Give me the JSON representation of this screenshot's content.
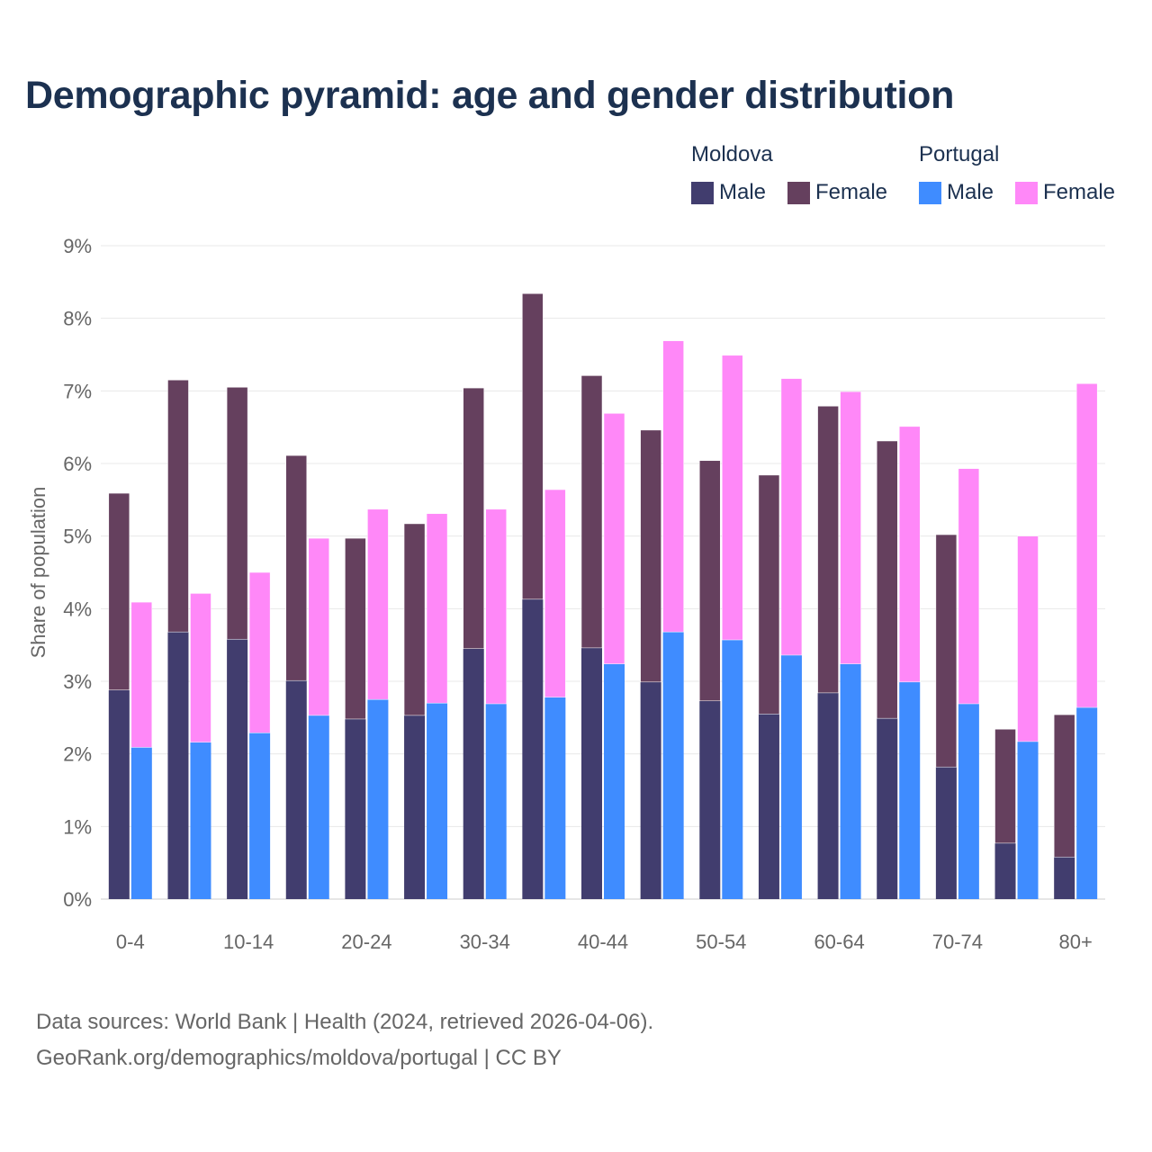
{
  "chart_data": {
    "type": "bar",
    "title": "Demographic pyramid: age and gender distribution",
    "ylabel": "Share of population",
    "xlabel": "",
    "ylim": [
      0,
      9
    ],
    "y_ticks": [
      "0%",
      "1%",
      "2%",
      "3%",
      "4%",
      "5%",
      "6%",
      "7%",
      "8%",
      "9%"
    ],
    "x_tick_labels": [
      "0-4",
      "10-14",
      "20-24",
      "30-34",
      "40-44",
      "50-54",
      "60-64",
      "70-74",
      "80+"
    ],
    "x_tick_label_every": 2,
    "group_count": 17,
    "legend": {
      "placement": "top-right",
      "groups": [
        {
          "name": "Moldova",
          "items": [
            "Male",
            "Female"
          ]
        },
        {
          "name": "Portugal",
          "items": [
            "Male",
            "Female"
          ]
        }
      ]
    },
    "series": [
      {
        "country": "Moldova",
        "name": "Male",
        "color": "#413d6e",
        "values": [
          2.88,
          3.68,
          3.58,
          3.01,
          2.48,
          2.53,
          3.45,
          4.13,
          3.46,
          2.99,
          2.73,
          2.55,
          2.84,
          2.49,
          1.82,
          0.77,
          0.58
        ]
      },
      {
        "country": "Moldova",
        "name": "Female",
        "color": "#65405e",
        "values": [
          2.71,
          3.47,
          3.47,
          3.1,
          2.49,
          2.64,
          3.59,
          4.21,
          3.75,
          3.47,
          3.31,
          3.29,
          3.95,
          3.82,
          3.2,
          1.57,
          1.96
        ]
      },
      {
        "country": "Portugal",
        "name": "Male",
        "color": "#3f8cff",
        "values": [
          2.09,
          2.16,
          2.29,
          2.53,
          2.75,
          2.7,
          2.69,
          2.78,
          3.24,
          3.68,
          3.57,
          3.36,
          3.24,
          2.99,
          2.69,
          2.17,
          2.64
        ]
      },
      {
        "country": "Portugal",
        "name": "Female",
        "color": "#ff88f8",
        "values": [
          2.0,
          2.05,
          2.21,
          2.44,
          2.62,
          2.61,
          2.68,
          2.86,
          3.45,
          4.01,
          3.92,
          3.81,
          3.75,
          3.52,
          3.24,
          2.83,
          4.46
        ]
      }
    ]
  },
  "source": {
    "line1": "Data sources: World Bank | Health (2024, retrieved 2026-04-06).",
    "line2": "GeoRank.org/demographics/moldova/portugal | CC BY"
  }
}
